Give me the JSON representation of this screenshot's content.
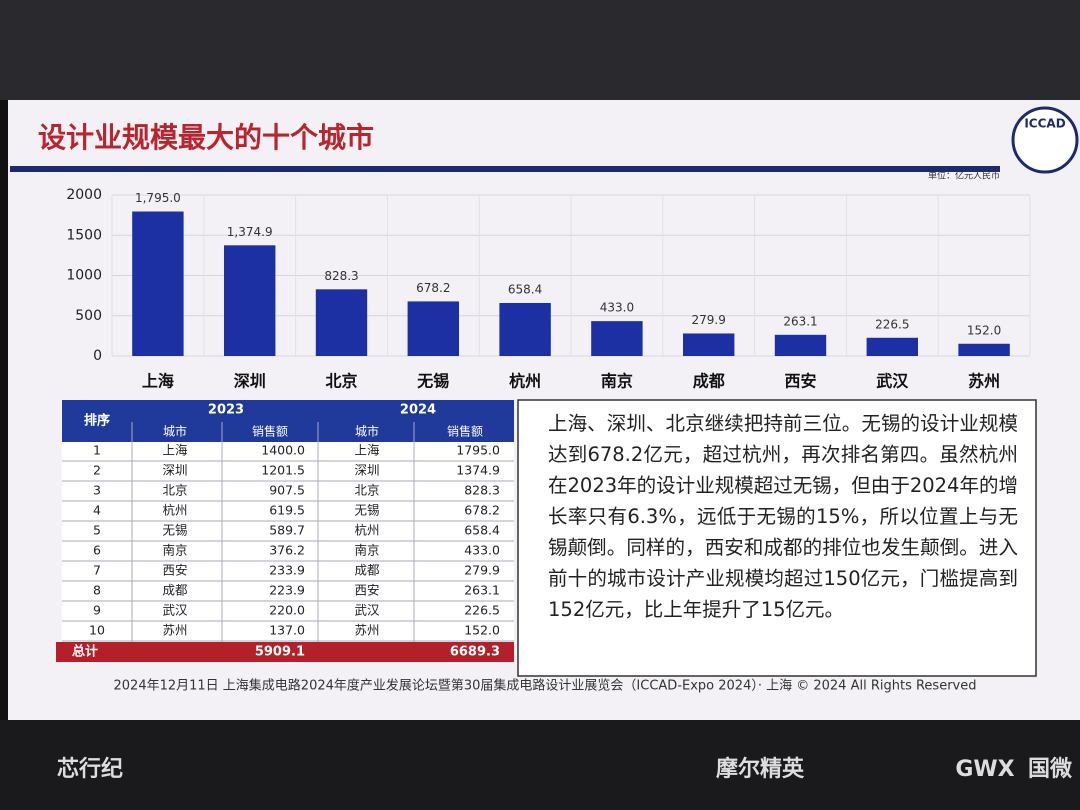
{
  "chart_data": {
    "type": "bar",
    "title": "设计业规模最大的十个城市",
    "unit": "单位：亿元人民币",
    "categories": [
      "上海",
      "深圳",
      "北京",
      "无锡",
      "杭州",
      "南京",
      "成都",
      "西安",
      "武汉",
      "苏州"
    ],
    "values": [
      1795.0,
      1374.9,
      828.3,
      678.2,
      658.4,
      433.0,
      279.9,
      263.1,
      226.5,
      152.0
    ],
    "value_labels": [
      "1,795.0",
      "1,374.9",
      "828.3",
      "678.2",
      "658.4",
      "433.0",
      "279.9",
      "263.1",
      "226.5",
      "152.0"
    ],
    "color": "#1c2fa3",
    "ylim": [
      0,
      2000
    ],
    "yticks": [
      0,
      500,
      1000,
      1500,
      2000
    ],
    "grid": true
  },
  "table": {
    "header": [
      "排序",
      "2023",
      "2024"
    ],
    "subheader": [
      "城市",
      "销售额",
      "城市",
      "销售额"
    ],
    "rows": [
      [
        "1",
        "上海",
        "1400.0",
        "上海",
        "1795.0"
      ],
      [
        "2",
        "深圳",
        "1201.5",
        "深圳",
        "1374.9"
      ],
      [
        "3",
        "北京",
        "907.5",
        "北京",
        "828.3"
      ],
      [
        "4",
        "杭州",
        "619.5",
        "无锡",
        "678.2"
      ],
      [
        "5",
        "无锡",
        "589.7",
        "杭州",
        "658.4"
      ],
      [
        "6",
        "南京",
        "376.2",
        "南京",
        "433.0"
      ],
      [
        "7",
        "西安",
        "233.9",
        "成都",
        "279.9"
      ],
      [
        "8",
        "成都",
        "223.9",
        "西安",
        "263.1"
      ],
      [
        "9",
        "武汉",
        "220.0",
        "武汉",
        "226.5"
      ],
      [
        "10",
        "苏州",
        "137.0",
        "苏州",
        "152.0"
      ]
    ],
    "total": [
      "总计",
      "5909.1",
      "6689.3"
    ]
  },
  "paragraph": "上海、深圳、北京继续把持前三位。无锡的设计业规模达到678.2亿元，超过杭州，再次排名第四。虽然杭州在2023年的设计业规模超过无锡，但由于2024年的增长率只有6.3%，远低于无锡的15%，所以位置上与无锡颠倒。同样的，西安和成都的排位也发生颠倒。进入前十的城市设计产业规模均超过150亿元，门槛提高到152亿元，比上年提升了15亿元。",
  "footer": "2024年12月11日 上海集成电路2024年度产业发展论坛暨第30届集成电路设计业展览会（ICCAD-Expo 2024）· 上海 © 2024 All Rights Reserved",
  "logo": "ICCAD",
  "sponsors": [
    "芯行纪",
    "摩尔精英",
    "GWX",
    "国微"
  ]
}
